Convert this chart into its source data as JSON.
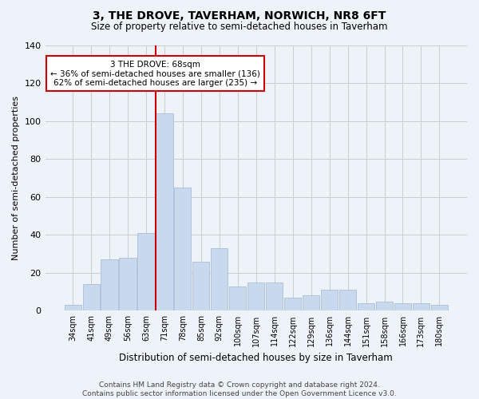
{
  "title": "3, THE DROVE, TAVERHAM, NORWICH, NR8 6FT",
  "subtitle": "Size of property relative to semi-detached houses in Taverham",
  "xlabel": "Distribution of semi-detached houses by size in Taverham",
  "ylabel": "Number of semi-detached properties",
  "categories": [
    "34sqm",
    "41sqm",
    "49sqm",
    "56sqm",
    "63sqm",
    "71sqm",
    "78sqm",
    "85sqm",
    "92sqm",
    "100sqm",
    "107sqm",
    "114sqm",
    "122sqm",
    "129sqm",
    "136sqm",
    "144sqm",
    "151sqm",
    "158sqm",
    "166sqm",
    "173sqm",
    "180sqm"
  ],
  "values": [
    3,
    14,
    27,
    28,
    41,
    104,
    65,
    26,
    33,
    13,
    15,
    15,
    7,
    8,
    11,
    11,
    4,
    5,
    4,
    4,
    3
  ],
  "bar_color": "#c9d9ed",
  "bar_edge_color": "#a0b8d8",
  "subject_bar_index": 5,
  "vline_color": "#cc0000",
  "annotation_text": "3 THE DROVE: 68sqm\n← 36% of semi-detached houses are smaller (136)\n62% of semi-detached houses are larger (235) →",
  "annotation_box_color": "#ffffff",
  "annotation_box_edge": "#cc0000",
  "ylim": [
    0,
    140
  ],
  "yticks": [
    0,
    20,
    40,
    60,
    80,
    100,
    120,
    140
  ],
  "grid_color": "#cccccc",
  "background_color": "#eef2f9",
  "footer_line1": "Contains HM Land Registry data © Crown copyright and database right 2024.",
  "footer_line2": "Contains public sector information licensed under the Open Government Licence v3.0."
}
